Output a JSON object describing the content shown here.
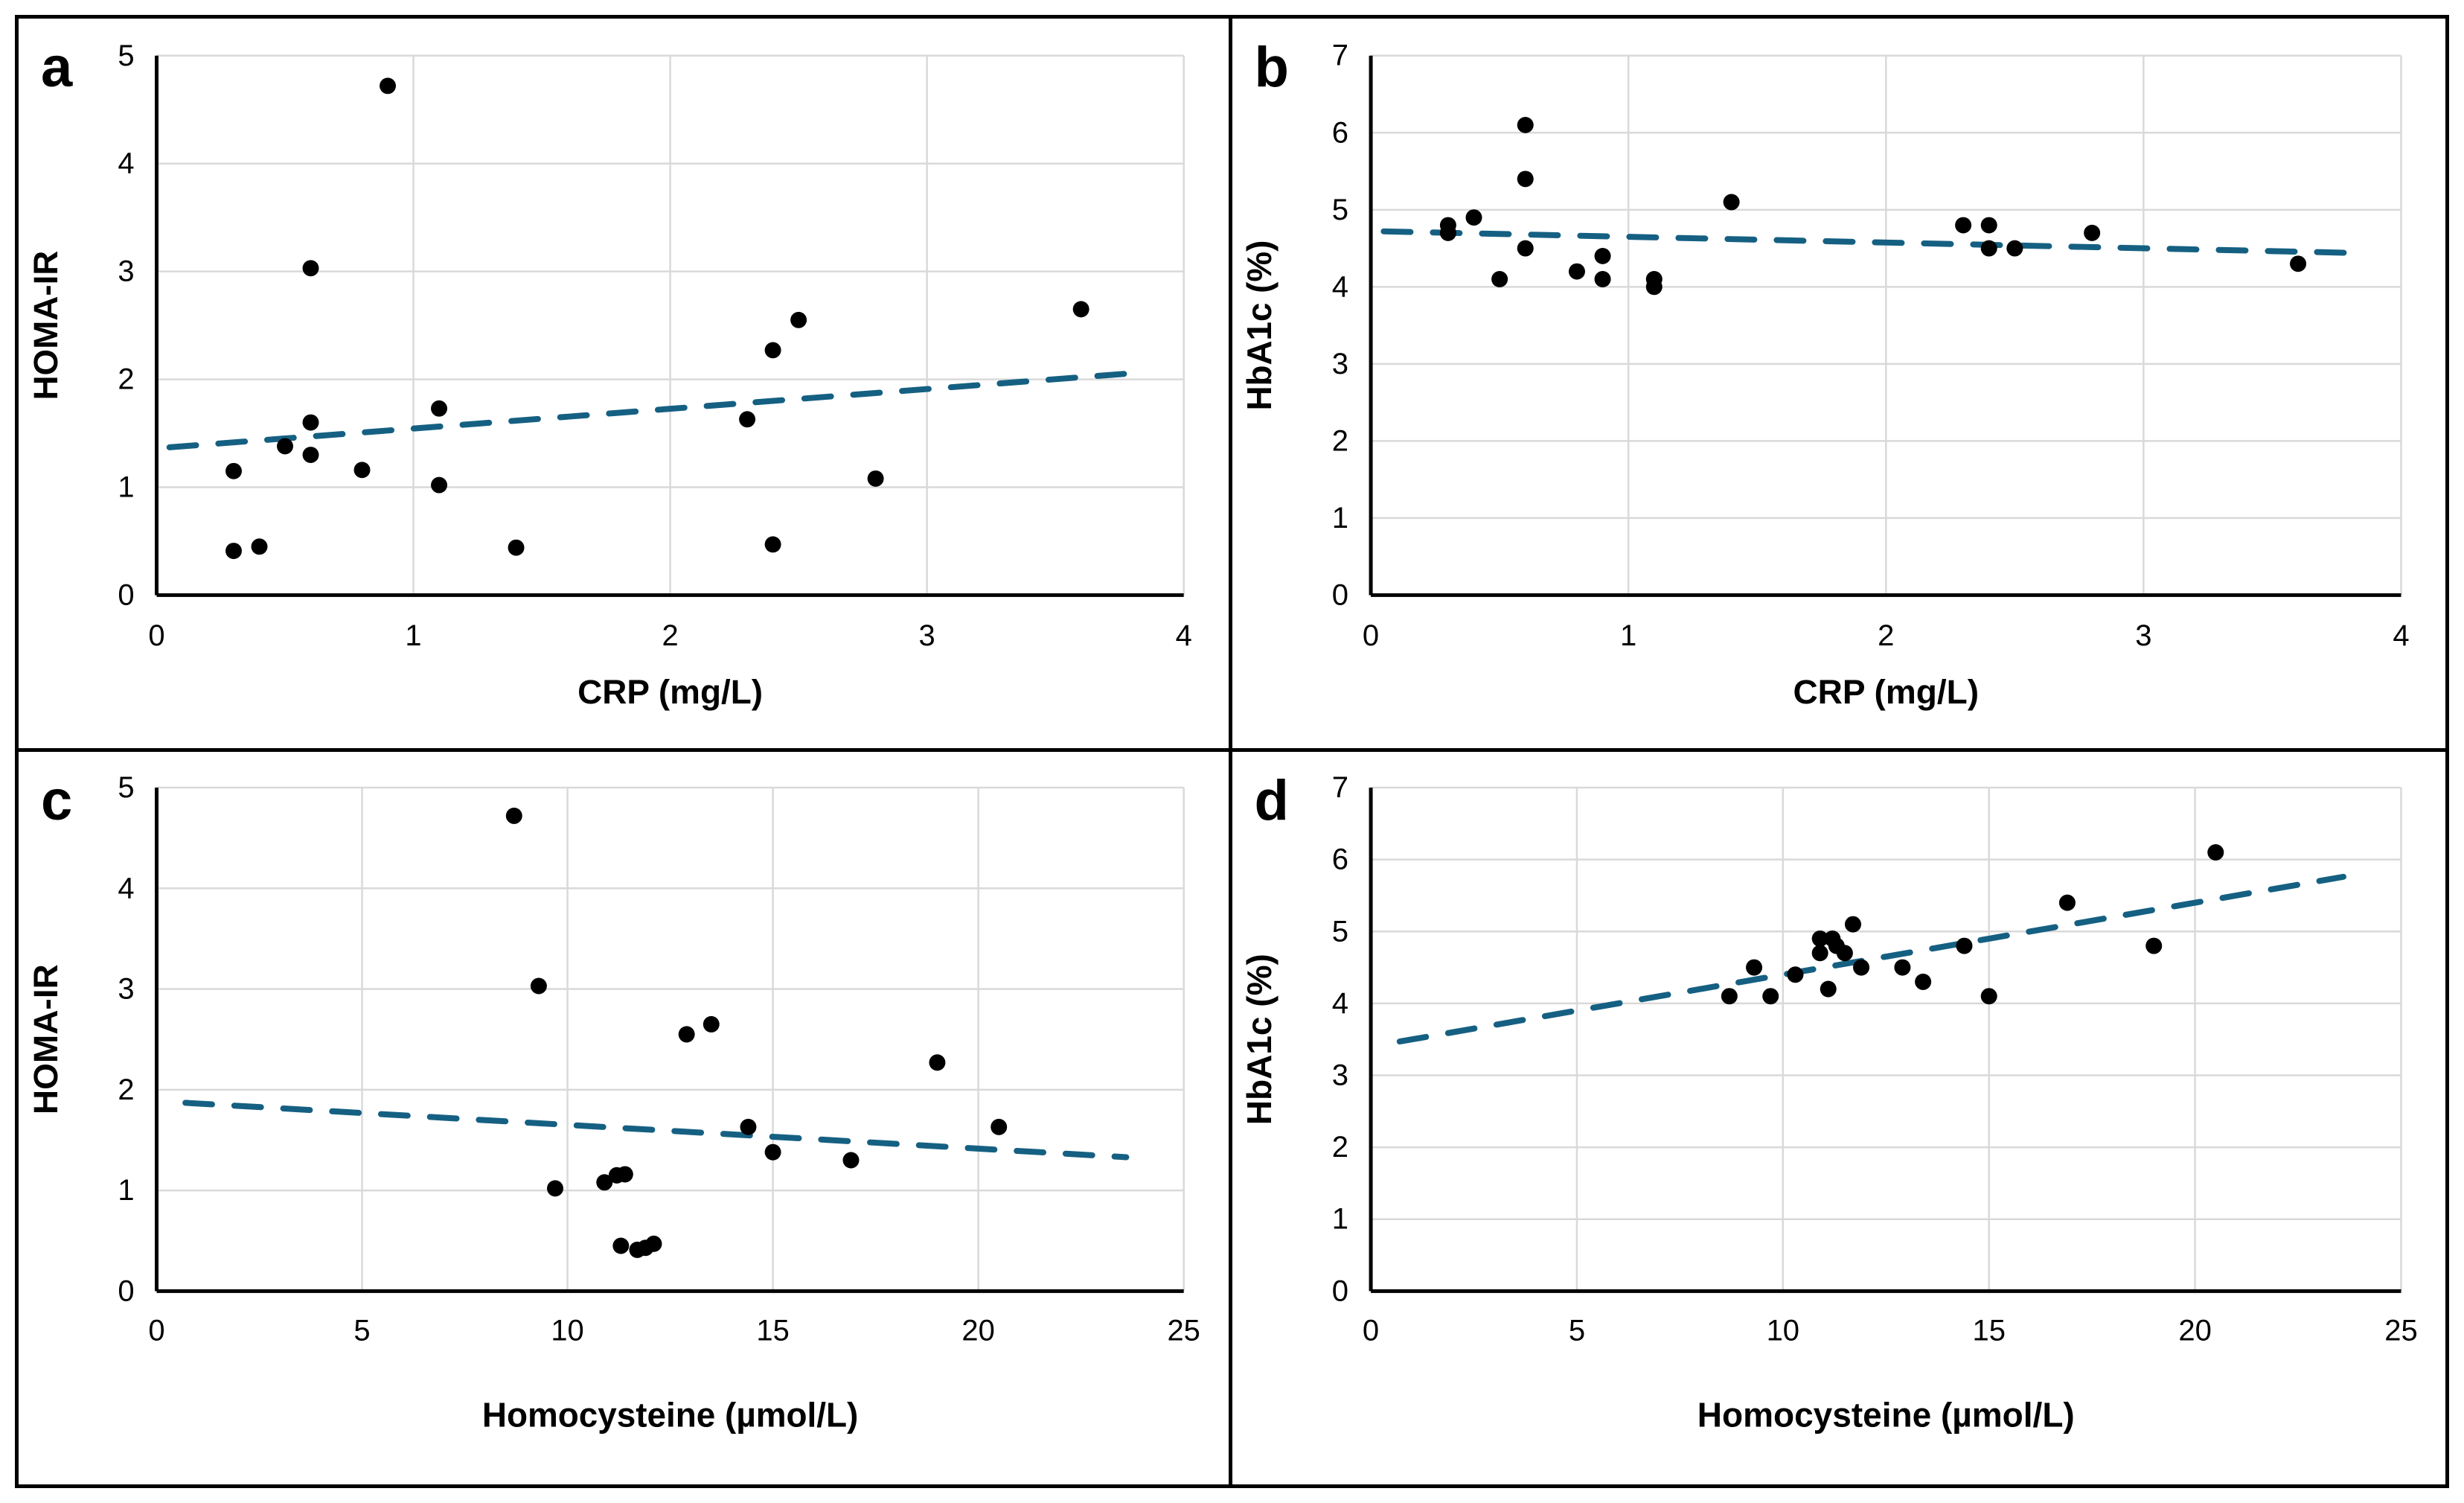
{
  "figure": {
    "colors": {
      "background": "#ffffff",
      "border": "#000000",
      "axis": "#000000",
      "grid": "#d9d9d9",
      "points": "#000000",
      "trendline": "#156082"
    },
    "panel_labels": {
      "a": "a",
      "b": "b",
      "c": "c",
      "d": "d"
    }
  },
  "chart_data": [
    {
      "id": "a",
      "panel_label": "a",
      "type": "scatter",
      "xlabel": "CRP (mg/L)",
      "ylabel": "HOMA-IR",
      "xlim": [
        0,
        4
      ],
      "ylim": [
        0,
        5
      ],
      "xticks": [
        0,
        1,
        2,
        3,
        4
      ],
      "yticks": [
        0,
        1,
        2,
        3,
        4,
        5
      ],
      "grid": true,
      "legend": "none",
      "marker": {
        "shape": "circle",
        "color": "#000000"
      },
      "trendline": {
        "style": "dashed",
        "color": "#156082",
        "x1": 0.05,
        "y1": 1.37,
        "x2": 3.82,
        "y2": 2.06
      },
      "points": [
        [
          0.3,
          1.15
        ],
        [
          0.3,
          0.41
        ],
        [
          0.4,
          0.45
        ],
        [
          0.5,
          1.38
        ],
        [
          0.6,
          3.03
        ],
        [
          0.6,
          1.6
        ],
        [
          0.6,
          1.3
        ],
        [
          0.8,
          1.16
        ],
        [
          0.9,
          4.72
        ],
        [
          1.1,
          1.73
        ],
        [
          1.1,
          1.02
        ],
        [
          1.4,
          0.44
        ],
        [
          2.3,
          1.63
        ],
        [
          2.4,
          2.27
        ],
        [
          2.4,
          0.47
        ],
        [
          2.5,
          2.55
        ],
        [
          2.8,
          1.08
        ],
        [
          3.6,
          2.65
        ]
      ]
    },
    {
      "id": "b",
      "panel_label": "b",
      "type": "scatter",
      "xlabel": "CRP (mg/L)",
      "ylabel": "HbA1c (%)",
      "xlim": [
        0,
        4
      ],
      "ylim": [
        0,
        7
      ],
      "xticks": [
        0,
        1,
        2,
        3,
        4
      ],
      "yticks": [
        0,
        1,
        2,
        3,
        4,
        5,
        6,
        7
      ],
      "grid": true,
      "legend": "none",
      "marker": {
        "shape": "circle",
        "color": "#000000"
      },
      "trendline": {
        "style": "dashed",
        "color": "#156082",
        "x1": 0.05,
        "y1": 4.72,
        "x2": 3.82,
        "y2": 4.44
      },
      "points": [
        [
          0.3,
          4.8
        ],
        [
          0.3,
          4.7
        ],
        [
          0.4,
          4.9
        ],
        [
          0.5,
          4.1
        ],
        [
          0.6,
          6.1
        ],
        [
          0.6,
          5.4
        ],
        [
          0.6,
          4.5
        ],
        [
          0.8,
          4.2
        ],
        [
          0.9,
          4.4
        ],
        [
          0.9,
          4.1
        ],
        [
          1.1,
          4.1
        ],
        [
          1.1,
          4.0
        ],
        [
          1.4,
          5.1
        ],
        [
          2.3,
          4.8
        ],
        [
          2.4,
          4.8
        ],
        [
          2.4,
          4.5
        ],
        [
          2.5,
          4.5
        ],
        [
          2.8,
          4.7
        ],
        [
          3.6,
          4.3
        ]
      ]
    },
    {
      "id": "c",
      "panel_label": "c",
      "type": "scatter",
      "xlabel": "Homocysteine (µmol/L)",
      "ylabel": "HOMA-IR",
      "xlim": [
        0,
        25
      ],
      "ylim": [
        0,
        5
      ],
      "xticks": [
        0,
        5,
        10,
        15,
        20,
        25
      ],
      "yticks": [
        0,
        1,
        2,
        3,
        4,
        5
      ],
      "grid": true,
      "legend": "none",
      "marker": {
        "shape": "circle",
        "color": "#000000"
      },
      "trendline": {
        "style": "dashed",
        "color": "#156082",
        "x1": 0.7,
        "y1": 1.87,
        "x2": 23.6,
        "y2": 1.33
      },
      "points": [
        [
          8.7,
          4.72
        ],
        [
          9.3,
          3.03
        ],
        [
          9.7,
          1.02
        ],
        [
          10.9,
          1.08
        ],
        [
          11.2,
          1.15
        ],
        [
          11.4,
          1.16
        ],
        [
          11.3,
          0.45
        ],
        [
          11.7,
          0.41
        ],
        [
          11.9,
          0.43
        ],
        [
          12.1,
          0.47
        ],
        [
          12.9,
          2.55
        ],
        [
          13.5,
          2.65
        ],
        [
          14.4,
          1.63
        ],
        [
          15.0,
          1.38
        ],
        [
          16.9,
          1.3
        ],
        [
          19.0,
          2.27
        ],
        [
          20.5,
          1.63
        ]
      ]
    },
    {
      "id": "d",
      "panel_label": "d",
      "type": "scatter",
      "xlabel": "Homocysteine (µmol/L)",
      "ylabel": "HbA1c (%)",
      "xlim": [
        0,
        25
      ],
      "ylim": [
        0,
        7
      ],
      "xticks": [
        0,
        5,
        10,
        15,
        20,
        25
      ],
      "yticks": [
        0,
        1,
        2,
        3,
        4,
        5,
        6,
        7
      ],
      "grid": true,
      "legend": "none",
      "marker": {
        "shape": "circle",
        "color": "#000000"
      },
      "trendline": {
        "style": "dashed",
        "color": "#156082",
        "x1": 0.7,
        "y1": 3.47,
        "x2": 23.6,
        "y2": 5.76
      },
      "points": [
        [
          8.7,
          4.1
        ],
        [
          9.3,
          4.5
        ],
        [
          9.7,
          4.1
        ],
        [
          10.3,
          4.4
        ],
        [
          10.9,
          4.9
        ],
        [
          10.9,
          4.7
        ],
        [
          11.1,
          4.2
        ],
        [
          11.2,
          4.9
        ],
        [
          11.3,
          4.8
        ],
        [
          11.5,
          4.7
        ],
        [
          11.7,
          5.1
        ],
        [
          11.9,
          4.5
        ],
        [
          12.9,
          4.5
        ],
        [
          13.4,
          4.3
        ],
        [
          14.4,
          4.8
        ],
        [
          15.0,
          4.1
        ],
        [
          16.9,
          5.4
        ],
        [
          19.0,
          4.8
        ],
        [
          20.5,
          6.1
        ]
      ]
    }
  ]
}
